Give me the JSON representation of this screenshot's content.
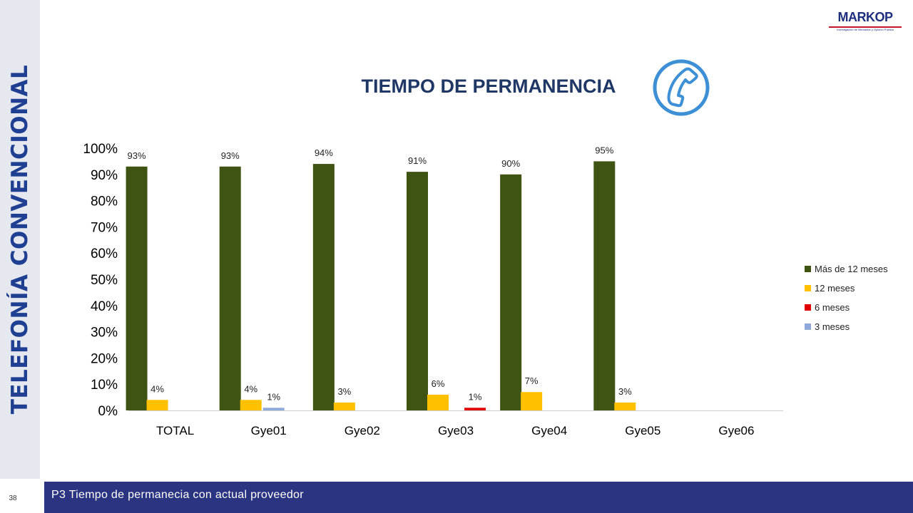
{
  "slide": {
    "side_title": "TELEFONÍA CONVENCIONAL",
    "page_number": "38",
    "footer_text": "P3 Tiempo de permanecia con actual proveedor",
    "logo": {
      "name": "MARKOP",
      "tagline": "Investigación de Mercados y Opinión Pública",
      "icon": "markop-logo"
    },
    "header_icon": "phone-icon",
    "colors": {
      "navy": "#2b3481",
      "title_blue": "#1f3f92",
      "phone_blue": "#3d8fd6"
    }
  },
  "chart_data": {
    "type": "bar",
    "title": "TIEMPO DE PERMANENCIA",
    "categories": [
      "TOTAL",
      "Gye01",
      "Gye02",
      "Gye03",
      "Gye04",
      "Gye05",
      "Gye06"
    ],
    "yticks": [
      "0%",
      "10%",
      "20%",
      "30%",
      "40%",
      "50%",
      "60%",
      "70%",
      "80%",
      "90%",
      "100%"
    ],
    "ylim": [
      0,
      100
    ],
    "grid": false,
    "legend_position": "right",
    "series": [
      {
        "name": "Más de 12 meses",
        "color": "#3f5413",
        "values": [
          93,
          93,
          94,
          91,
          90,
          95,
          null
        ],
        "labels": [
          "93%",
          "93%",
          "94%",
          "91%",
          "90%",
          "95%",
          ""
        ]
      },
      {
        "name": "12 meses",
        "color": "#ffc000",
        "values": [
          4,
          4,
          3,
          6,
          7,
          3,
          null
        ],
        "labels": [
          "4%",
          "4%",
          "3%",
          "6%",
          "7%",
          "3%",
          ""
        ]
      },
      {
        "name": "6 meses",
        "color": "#e00000",
        "values": [
          null,
          null,
          null,
          1,
          null,
          null,
          null
        ],
        "labels": [
          "",
          "",
          "",
          "1%",
          "",
          "",
          ""
        ]
      },
      {
        "name": "3 meses",
        "color": "#8eaadb",
        "values": [
          null,
          1,
          null,
          null,
          null,
          null,
          null
        ],
        "labels": [
          "",
          "1%",
          "",
          "",
          "",
          "",
          ""
        ]
      }
    ]
  }
}
